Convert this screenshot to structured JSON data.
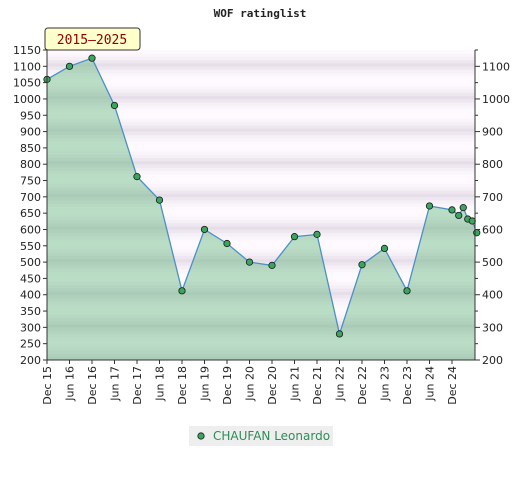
{
  "chart_data": {
    "type": "area",
    "title": "WOF ratinglist",
    "period_label": "2015–2025",
    "ylim": [
      200,
      1150
    ],
    "y_ticks_left": [
      200,
      250,
      300,
      350,
      400,
      450,
      500,
      550,
      600,
      650,
      700,
      750,
      800,
      850,
      900,
      950,
      1000,
      1050,
      1100,
      1150
    ],
    "y_ticks_right": [
      200,
      300,
      400,
      500,
      600,
      700,
      800,
      900,
      1000,
      1100
    ],
    "x_tick_labels": [
      "Dec 15",
      "Jun 16",
      "Dec 16",
      "Jun 17",
      "Dec 17",
      "Jun 18",
      "Dec 18",
      "Jun 19",
      "Dec 19",
      "Jun 20",
      "Dec 20",
      "Jun 21",
      "Dec 21",
      "Jun 22",
      "Dec 22",
      "Jun 23",
      "Dec 23",
      "Jun 24",
      "Dec 24"
    ],
    "series": [
      {
        "name": "CHAUFAN Leonardo",
        "color": "#2e8b57",
        "x": [
          0,
          1,
          2,
          3,
          4,
          5,
          6,
          7,
          8,
          9,
          10,
          11,
          12,
          13,
          14,
          15,
          16,
          17,
          18,
          18.3,
          18.5,
          18.7,
          18.9,
          19.1
        ],
        "values": [
          1060,
          1100,
          1125,
          980,
          762,
          690,
          412,
          600,
          557,
          500,
          490,
          578,
          585,
          280,
          492,
          542,
          412,
          672,
          660,
          643,
          667,
          632,
          626,
          590
        ]
      }
    ],
    "legend_position": "bottom-center",
    "grid": true
  }
}
